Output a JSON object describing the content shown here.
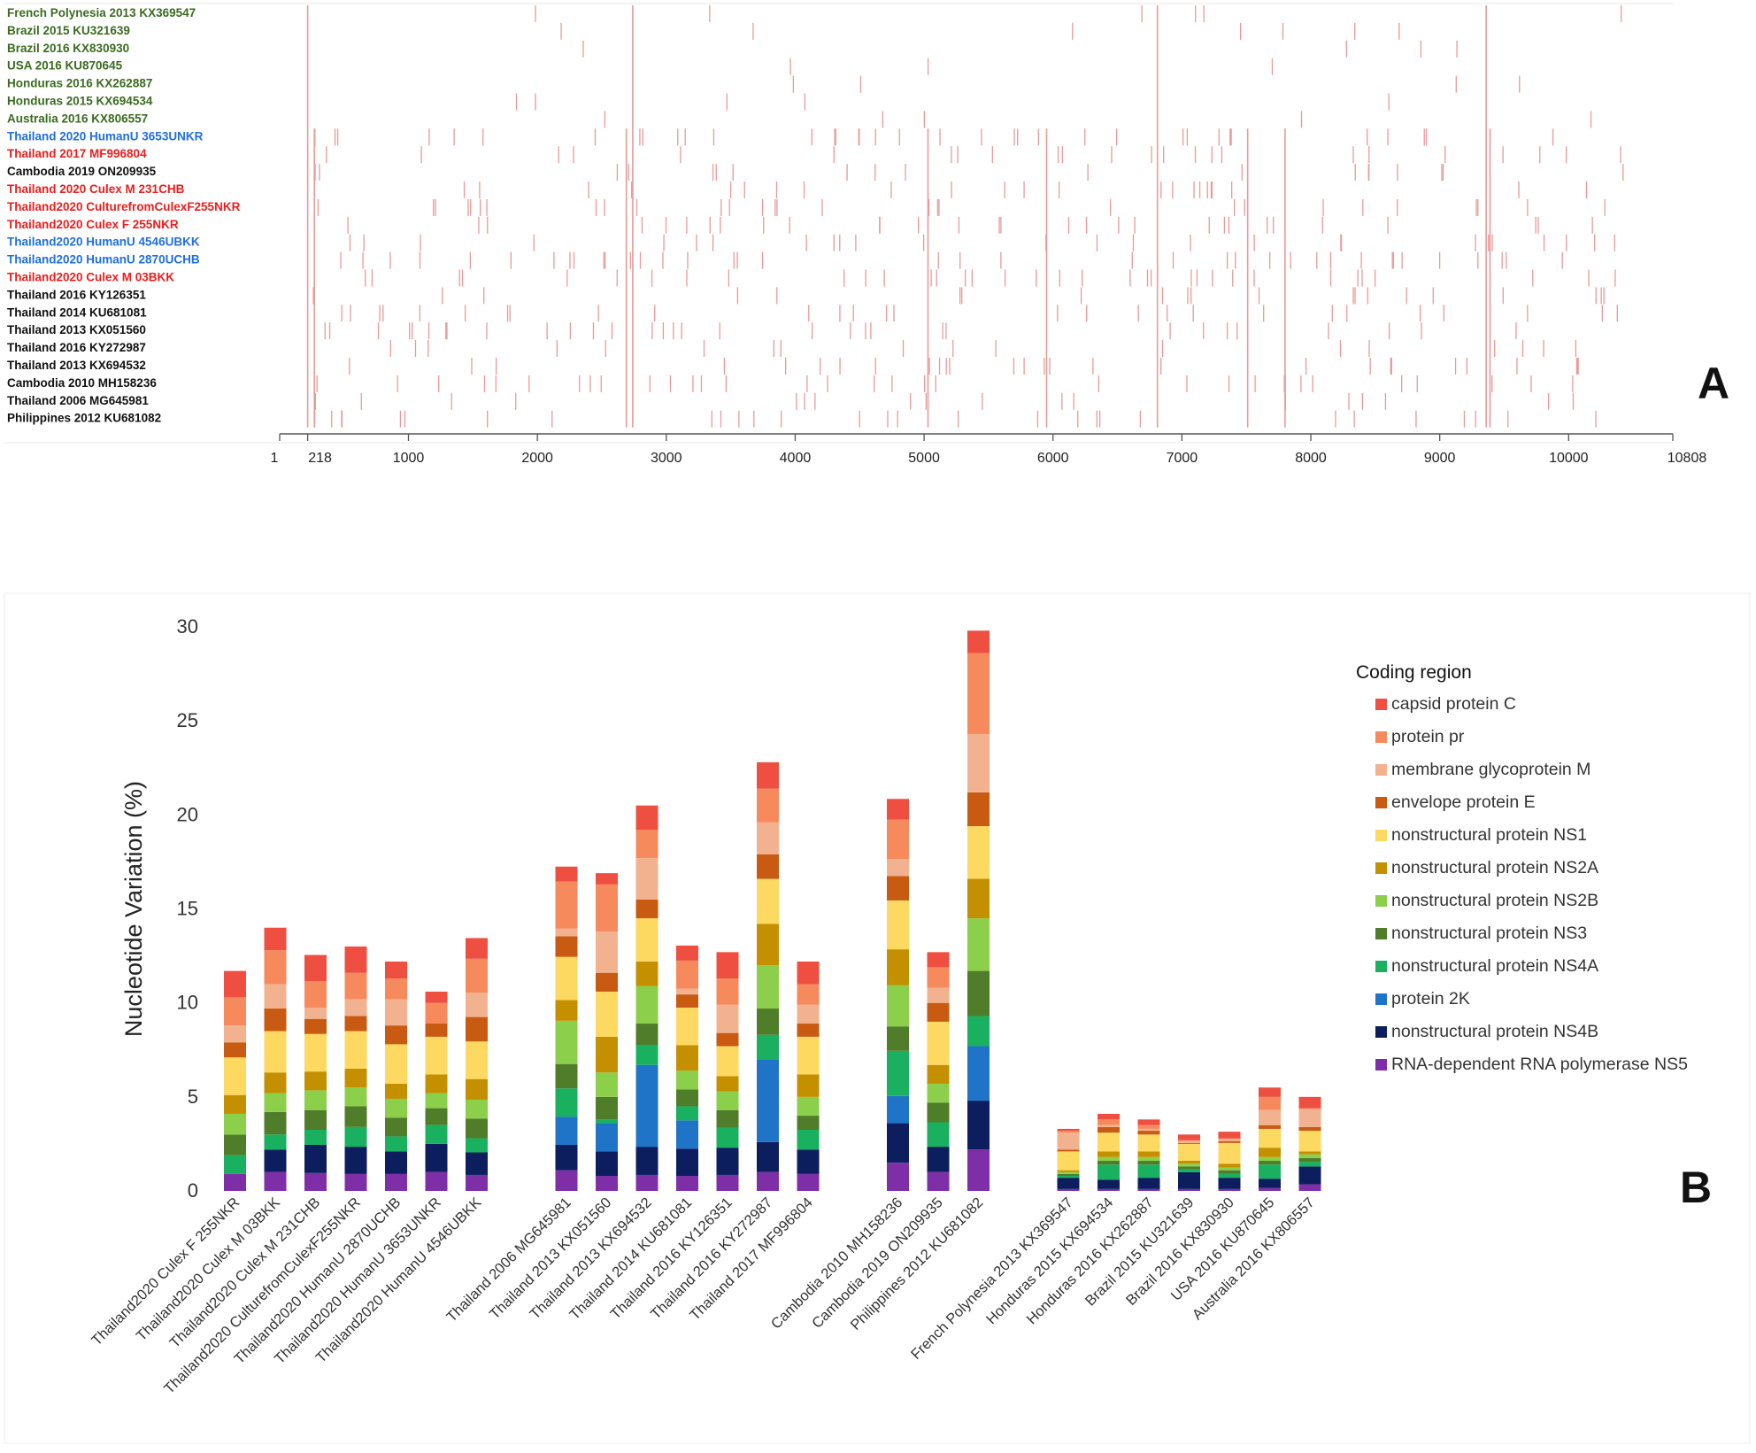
{
  "panel_a": {
    "panel_label": "A",
    "taxa": [
      {
        "label": "French Polynesia 2013 KX369547",
        "color": "#3a6b1f"
      },
      {
        "label": "Brazil 2015 KU321639",
        "color": "#3a6b1f"
      },
      {
        "label": "Brazil 2016 KX830930",
        "color": "#3a6b1f"
      },
      {
        "label": "USA 2016 KU870645",
        "color": "#3a6b1f"
      },
      {
        "label": "Honduras 2016 KX262887",
        "color": "#3a6b1f"
      },
      {
        "label": "Honduras 2015 KX694534",
        "color": "#3a6b1f"
      },
      {
        "label": "Australia 2016 KX806557",
        "color": "#3a6b1f"
      },
      {
        "label": "Thailand 2020 HumanU 3653UNKR",
        "color": "#1f6fe0"
      },
      {
        "label": "Thailand 2017 MF996804",
        "color": "#ee1c1c"
      },
      {
        "label": "Cambodia 2019 ON209935",
        "color": "#111111"
      },
      {
        "label": "Thailand 2020 Culex M 231CHB",
        "color": "#ee1c1c"
      },
      {
        "label": "Thailand2020 CulturefromCulexF255NKR",
        "color": "#ee1c1c"
      },
      {
        "label": "Thailand2020 Culex F 255NKR",
        "color": "#ee1c1c"
      },
      {
        "label": "Thailand2020 HumanU 4546UBKK",
        "color": "#1f6fe0"
      },
      {
        "label": "Thailand2020 HumanU 2870UCHB",
        "color": "#1f6fe0"
      },
      {
        "label": "Thailand2020 Culex M 03BKK",
        "color": "#ee1c1c"
      },
      {
        "label": "Thailand 2016 KY126351",
        "color": "#111111"
      },
      {
        "label": "Thailand 2014 KU681081",
        "color": "#111111"
      },
      {
        "label": "Thailand 2013 KX051560",
        "color": "#111111"
      },
      {
        "label": "Thailand 2016 KY272987",
        "color": "#111111"
      },
      {
        "label": "Thailand 2013 KX694532",
        "color": "#111111"
      },
      {
        "label": "Cambodia 2010 MH158236",
        "color": "#111111"
      },
      {
        "label": "Thailand 2006 MG645981",
        "color": "#111111"
      },
      {
        "label": "Philippines 2012 KU681082",
        "color": "#111111"
      }
    ],
    "axis_ticks": [
      "1",
      "218",
      "1000",
      "2000",
      "3000",
      "4000",
      "5000",
      "6000",
      "7000",
      "8000",
      "9000",
      "10000",
      "10808"
    ],
    "tick_values": [
      1,
      218,
      1000,
      2000,
      3000,
      4000,
      5000,
      6000,
      7000,
      8000,
      9000,
      10000,
      10808
    ],
    "variant_color": "#e89a9a",
    "shared_sites": [
      218,
      270,
      2690,
      2740,
      5030,
      5950,
      6810,
      7510,
      7800,
      9360,
      9390
    ]
  },
  "chart_data": {
    "type": "bar",
    "stacked": true,
    "panel_label": "B",
    "ylabel": "Nucleotide Variation (%)",
    "ylim": [
      0,
      30
    ],
    "yticks": [
      0,
      5,
      10,
      15,
      20,
      25,
      30
    ],
    "legend_title": "Coding region",
    "legend_position": "right",
    "categories": [
      "Thailand2020 Culex F 255NKR",
      "Thailand2020 Culex M 03BKK",
      "Thailand2020 Culex M 231CHB",
      "Thailand2020 CulturefromCulexF255NKR",
      "Thailand2020 HumanU 2870UCHB",
      "Thailand2020 HumanU 3653UNKR",
      "Thailand2020 HumanU 4546UBKK",
      "Thailand 2006 MG645981",
      "Thailand 2013 KX051560",
      "Thailand 2013 KX694532",
      "Thailand 2014 KU681081",
      "Thailand 2016 KY126351",
      "Thailand 2016 KY272987",
      "Thailand 2017 MF996804",
      "Cambodia 2010 MH158236",
      "Cambodia 2019 ON209935",
      "Philippines 2012 KU681082",
      "French Polynesia 2013 KX369547",
      "Honduras 2015 KX694534",
      "Honduras 2016 KX262887",
      "Brazil 2015 KU321639",
      "Brazil 2016 KX830930",
      "USA 2016 KU870645",
      "Australia 2016 KX806557"
    ],
    "groups": [
      7,
      7,
      3,
      7
    ],
    "series": [
      {
        "name": "RNA-dependent RNA polymerase NS5",
        "color": "#7e2fa8",
        "values": [
          0.9,
          1.0,
          0.95,
          0.9,
          0.9,
          1.0,
          0.85,
          1.1,
          0.8,
          0.85,
          0.8,
          0.85,
          1.0,
          0.9,
          1.5,
          1.0,
          2.2,
          0.1,
          0.1,
          0.1,
          0.1,
          0.1,
          0.15,
          0.35
        ]
      },
      {
        "name": "nonstructural protein NS4B",
        "color": "#0d1e5e",
        "values": [
          0.0,
          1.2,
          1.5,
          1.45,
          1.2,
          1.5,
          1.2,
          1.35,
          1.3,
          1.5,
          1.45,
          1.45,
          1.6,
          1.3,
          2.1,
          1.35,
          2.6,
          0.6,
          0.5,
          0.6,
          0.9,
          0.6,
          0.5,
          0.95
        ]
      },
      {
        "name": "protein 2K",
        "color": "#1f74c8",
        "values": [
          0.0,
          0.0,
          0.0,
          0.0,
          0.0,
          0.0,
          0.0,
          1.5,
          1.5,
          4.35,
          1.5,
          0.0,
          4.4,
          0.0,
          1.45,
          0.0,
          2.9,
          0.0,
          0.0,
          0.0,
          0.0,
          0.0,
          0.0,
          0.0
        ]
      },
      {
        "name": "nonstructural protein NS4A",
        "color": "#19b060",
        "values": [
          1.0,
          0.8,
          0.8,
          1.05,
          0.8,
          1.0,
          0.75,
          1.5,
          0.2,
          1.05,
          0.75,
          1.05,
          1.3,
          1.05,
          2.4,
          1.3,
          1.6,
          0.1,
          0.8,
          0.7,
          0.15,
          0.2,
          0.75,
          0.25
        ]
      },
      {
        "name": "nonstructural protein NS3",
        "color": "#4f7d2a",
        "values": [
          1.1,
          1.2,
          1.05,
          1.1,
          1.0,
          0.9,
          1.05,
          1.3,
          1.2,
          1.15,
          0.9,
          0.95,
          1.4,
          0.75,
          1.3,
          1.05,
          2.4,
          0.1,
          0.2,
          0.2,
          0.15,
          0.2,
          0.2,
          0.2
        ]
      },
      {
        "name": "nonstructural protein NS2B",
        "color": "#8ccf4b",
        "values": [
          1.1,
          1.0,
          1.05,
          1.0,
          1.0,
          0.8,
          1.0,
          2.3,
          1.3,
          2.0,
          1.0,
          1.0,
          2.3,
          1.0,
          2.2,
          1.0,
          2.8,
          0.1,
          0.2,
          0.2,
          0.15,
          0.15,
          0.2,
          0.2
        ]
      },
      {
        "name": "nonstructural protein NS2A",
        "color": "#c49000",
        "values": [
          1.0,
          1.1,
          1.0,
          1.0,
          0.8,
          1.0,
          1.1,
          1.1,
          1.9,
          1.3,
          1.35,
          0.8,
          2.2,
          1.2,
          1.9,
          1.0,
          2.1,
          0.1,
          0.3,
          0.3,
          0.15,
          0.2,
          0.5,
          0.15
        ]
      },
      {
        "name": "nonstructural protein NS1",
        "color": "#fdd961",
        "values": [
          2.0,
          2.2,
          2.0,
          2.0,
          2.1,
          2.0,
          2.0,
          2.3,
          2.4,
          2.3,
          2.0,
          1.6,
          2.4,
          2.0,
          2.6,
          2.3,
          2.8,
          1.0,
          1.0,
          0.9,
          0.9,
          1.1,
          1.0,
          1.1
        ]
      },
      {
        "name": "envelope protein E",
        "color": "#c85a12",
        "values": [
          0.8,
          1.2,
          0.8,
          0.8,
          1.0,
          0.7,
          1.3,
          1.1,
          1.0,
          1.0,
          0.7,
          0.7,
          1.3,
          0.7,
          1.3,
          1.0,
          1.8,
          0.1,
          0.3,
          0.2,
          0.05,
          0.1,
          0.2,
          0.2
        ]
      },
      {
        "name": "membrane glycoprotein M",
        "color": "#f3b28f",
        "values": [
          0.9,
          1.3,
          0.6,
          0.9,
          1.4,
          0.0,
          1.3,
          0.4,
          2.2,
          2.2,
          0.3,
          1.5,
          1.7,
          1.0,
          0.9,
          0.8,
          3.1,
          0.9,
          0.1,
          0.1,
          0.1,
          0.1,
          0.8,
          0.95
        ]
      },
      {
        "name": "protein pr",
        "color": "#f68a5c",
        "values": [
          1.5,
          1.8,
          1.4,
          1.4,
          1.1,
          1.1,
          1.8,
          2.5,
          2.5,
          1.5,
          1.5,
          1.4,
          1.8,
          1.1,
          2.1,
          1.1,
          4.3,
          0.1,
          0.3,
          0.2,
          0.05,
          0.05,
          0.7,
          0.05
        ]
      },
      {
        "name": "capsid protein C",
        "color": "#ee4f41",
        "values": [
          1.4,
          1.2,
          1.4,
          1.4,
          0.9,
          0.6,
          1.1,
          0.8,
          0.6,
          1.3,
          0.8,
          1.4,
          1.4,
          1.2,
          1.1,
          0.8,
          1.2,
          0.1,
          0.3,
          0.3,
          0.3,
          0.35,
          0.5,
          0.6
        ]
      }
    ]
  }
}
